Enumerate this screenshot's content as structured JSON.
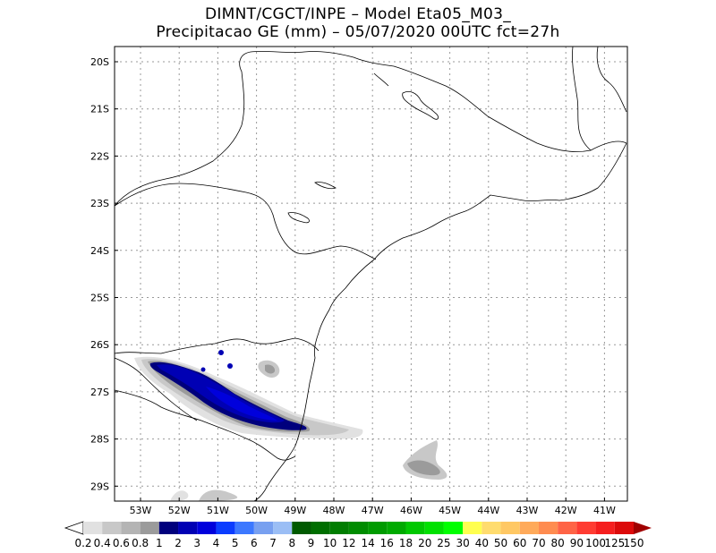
{
  "header": {
    "line1": "DIMNT/CGCT/INPE –   Model Eta05_M03_",
    "line2": "Precipitacao GE (mm) – 05/07/2020 00UTC fct=27h"
  },
  "map": {
    "lat_labels": [
      "20S",
      "21S",
      "22S",
      "23S",
      "24S",
      "25S",
      "26S",
      "27S",
      "28S",
      "29S"
    ],
    "lon_labels": [
      "53W",
      "52W",
      "51W",
      "50W",
      "49W",
      "48W",
      "47W",
      "46W",
      "45W",
      "44W",
      "43W",
      "42W",
      "41W"
    ]
  },
  "colorbar": {
    "labels": [
      "0.2",
      "0.4",
      "0.6",
      "0.8",
      "1",
      "2",
      "3",
      "4",
      "5",
      "6",
      "7",
      "8",
      "9",
      "10",
      "12",
      "14",
      "16",
      "18",
      "20",
      "25",
      "30",
      "40",
      "50",
      "60",
      "70",
      "80",
      "90",
      "100",
      "125",
      "150"
    ],
    "colors": [
      "#e1e1e1",
      "#c8c8c8",
      "#b4b4b4",
      "#9b9b9b",
      "#00007d",
      "#0000b4",
      "#0000dc",
      "#0a3cff",
      "#3c78ff",
      "#78a0f0",
      "#9bbef5",
      "#005a00",
      "#006e00",
      "#007d00",
      "#008c00",
      "#009b00",
      "#00aa00",
      "#00c800",
      "#00e100",
      "#00ff00",
      "#ffff50",
      "#ffdc6e",
      "#ffc864",
      "#ffaa5a",
      "#ff8c50",
      "#ff6446",
      "#ff3c32",
      "#f51e1e",
      "#dc0a0a",
      "#c80000",
      "#a00000"
    ]
  }
}
